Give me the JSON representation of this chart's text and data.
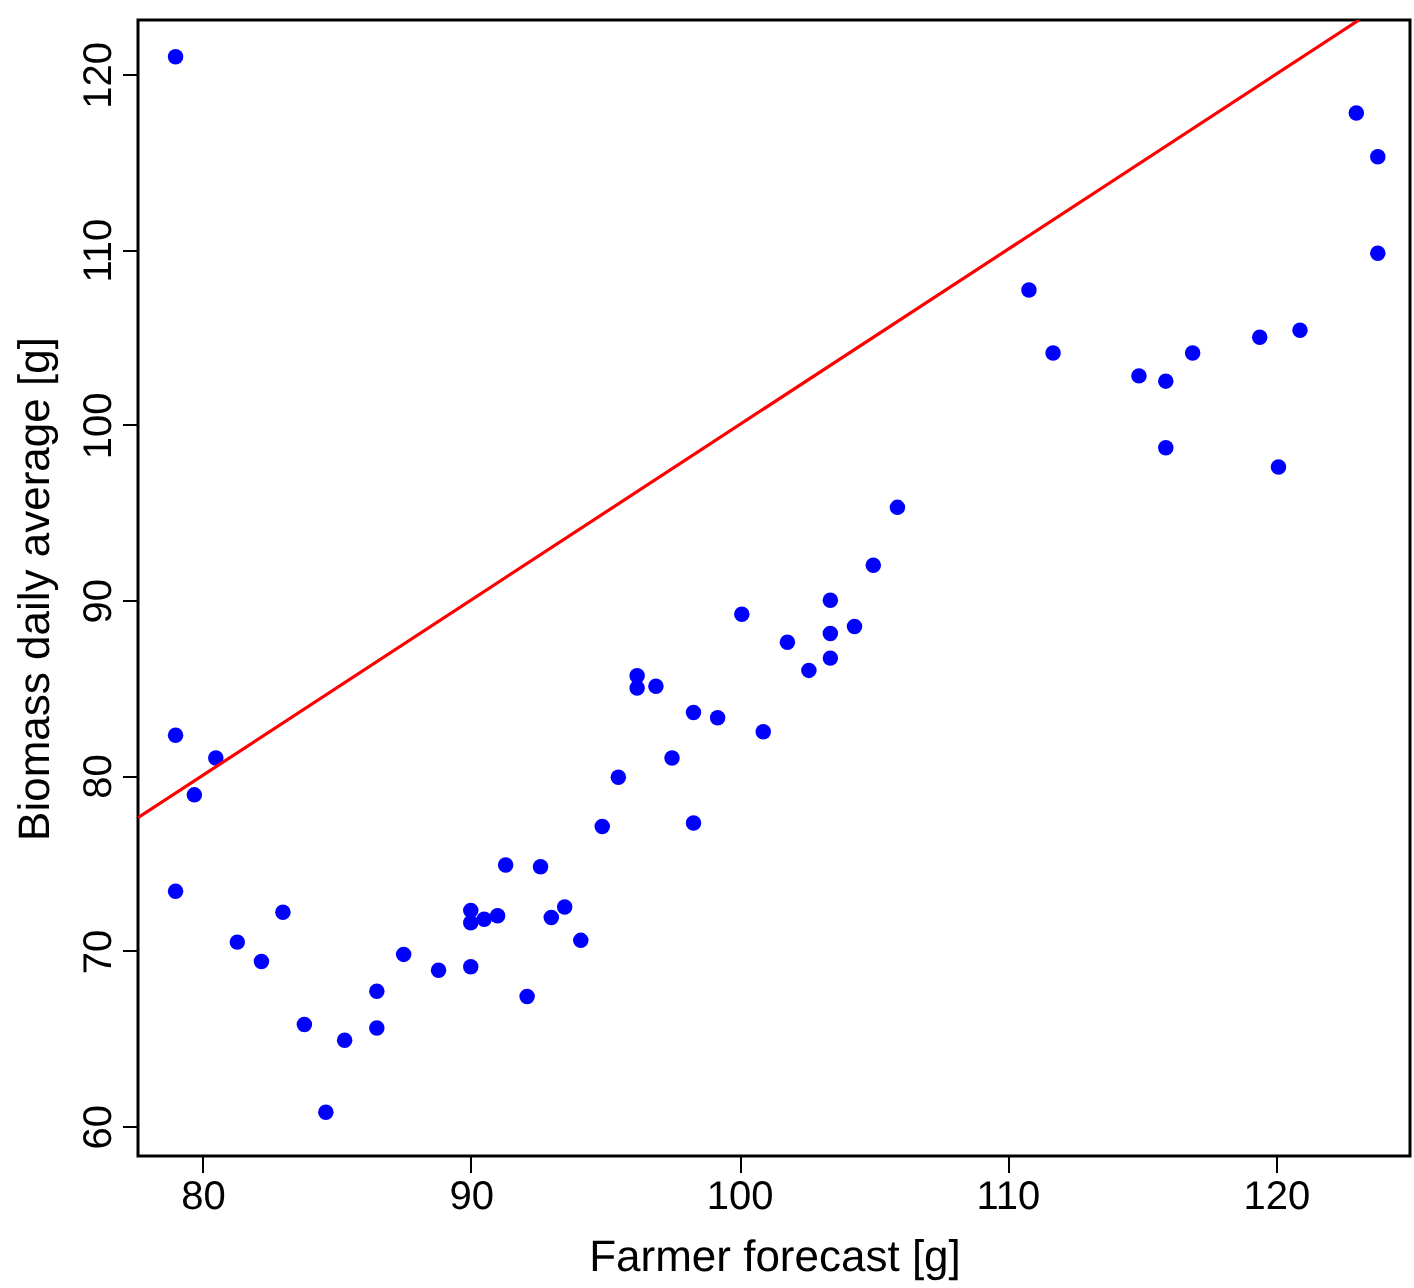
{
  "chart_data": {
    "type": "scatter",
    "xlabel": "Farmer forecast [g]",
    "ylabel": "Biomass daily average [g]",
    "xlim": [
      77.6,
      125
    ],
    "ylim": [
      58.3,
      123.1
    ],
    "xticks": [
      80,
      90,
      100,
      110,
      120
    ],
    "yticks": [
      60,
      70,
      80,
      90,
      100,
      110,
      120
    ],
    "grid": false,
    "series": [
      {
        "type": "scatter",
        "marker": "circle",
        "color": "#0000ff",
        "x": [
          79,
          79,
          80.5,
          79.7,
          79,
          81.3,
          82.2,
          83,
          83.8,
          84.6,
          85.3,
          86.5,
          86.5,
          87.5,
          88.8,
          90,
          90,
          90,
          90.5,
          91,
          91.3,
          92.1,
          92.6,
          93,
          93.5,
          94.1,
          94.9,
          95.5,
          96.2,
          96.2,
          96.9,
          97.5,
          98.3,
          98.3,
          99.2,
          100.1,
          100.9,
          101.8,
          102.6,
          103.4,
          103.4,
          103.4,
          104.3,
          105,
          105.9,
          110.8,
          111.7,
          114.9,
          115.9,
          115.9,
          116.9,
          119.4,
          120.9,
          120.1,
          123,
          123.8,
          123.8
        ],
        "values": [
          121,
          82.3,
          81,
          78.9,
          73.4,
          70.5,
          69.4,
          72.2,
          65.8,
          60.8,
          64.9,
          67.7,
          65.6,
          69.8,
          68.9,
          72.3,
          71.6,
          69.1,
          71.8,
          72,
          74.9,
          67.4,
          74.8,
          71.9,
          72.5,
          70.6,
          77.1,
          79.9,
          85.7,
          85,
          85.1,
          81,
          83.6,
          77.3,
          83.3,
          89.2,
          82.5,
          87.6,
          86,
          90,
          88.1,
          86.7,
          88.5,
          92,
          95.3,
          107.7,
          104.1,
          102.8,
          102.5,
          98.7,
          104.1,
          105,
          105.4,
          97.6,
          117.8,
          115.3,
          109.8
        ]
      },
      {
        "type": "line",
        "color": "#ff0000",
        "line_style": "solid",
        "x": [
          77.6,
          123.1
        ],
        "values": [
          77.6,
          123.1
        ]
      }
    ]
  }
}
